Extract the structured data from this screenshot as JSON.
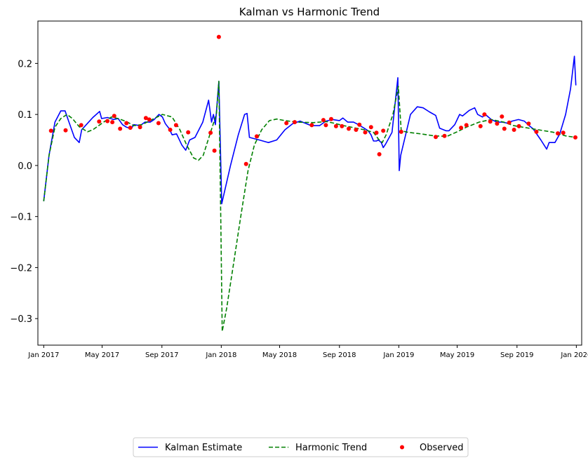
{
  "chart_data": {
    "type": "line",
    "title": "Kalman vs Harmonic Trend",
    "xlabel": "",
    "ylabel": "",
    "x_axis": {
      "type": "date",
      "range": [
        "2016-12-20",
        "2020-01-12"
      ],
      "ticks": [
        "2017-01-01",
        "2017-05-01",
        "2017-09-01",
        "2018-01-01",
        "2018-05-01",
        "2018-09-01",
        "2019-01-01",
        "2019-05-01",
        "2019-09-01",
        "2020-01-01"
      ],
      "tick_labels": [
        "Jan 2017",
        "May 2017",
        "Sep 2017",
        "Jan 2018",
        "May 2018",
        "Sep 2018",
        "Jan 2019",
        "May 2019",
        "Sep 2019",
        "Jan 2020"
      ]
    },
    "y_axis": {
      "range": [
        -0.352,
        0.283
      ],
      "ticks": [
        -0.3,
        -0.2,
        -0.1,
        0.0,
        0.1,
        0.2
      ],
      "tick_labels": [
        "−0.3",
        "−0.2",
        "−0.1",
        "0.0",
        "0.1",
        "0.2"
      ]
    },
    "grid": false,
    "legend": {
      "placement": "bottom-center",
      "columns": 3
    },
    "series": [
      {
        "name": "Kalman Estimate",
        "style": "solid",
        "color": "#0000ff",
        "points": [
          [
            "2017-01-01",
            -0.07
          ],
          [
            "2017-01-12",
            0.02
          ],
          [
            "2017-01-24",
            0.085
          ],
          [
            "2017-02-05",
            0.107
          ],
          [
            "2017-02-14",
            0.107
          ],
          [
            "2017-02-20",
            0.09
          ],
          [
            "2017-03-05",
            0.055
          ],
          [
            "2017-03-15",
            0.045
          ],
          [
            "2017-03-20",
            0.07
          ],
          [
            "2017-04-12",
            0.094
          ],
          [
            "2017-04-26",
            0.106
          ],
          [
            "2017-04-30",
            0.092
          ],
          [
            "2017-05-12",
            0.094
          ],
          [
            "2017-05-25",
            0.09
          ],
          [
            "2017-06-03",
            0.092
          ],
          [
            "2017-06-12",
            0.08
          ],
          [
            "2017-06-20",
            0.075
          ],
          [
            "2017-06-30",
            0.072
          ],
          [
            "2017-07-05",
            0.08
          ],
          [
            "2017-07-18",
            0.078
          ],
          [
            "2017-07-28",
            0.085
          ],
          [
            "2017-08-08",
            0.085
          ],
          [
            "2017-08-16",
            0.09
          ],
          [
            "2017-08-26",
            0.1
          ],
          [
            "2017-09-02",
            0.095
          ],
          [
            "2017-09-08",
            0.082
          ],
          [
            "2017-09-16",
            0.072
          ],
          [
            "2017-09-22",
            0.06
          ],
          [
            "2017-10-01",
            0.062
          ],
          [
            "2017-10-12",
            0.04
          ],
          [
            "2017-10-20",
            0.03
          ],
          [
            "2017-10-28",
            0.05
          ],
          [
            "2017-11-08",
            0.055
          ],
          [
            "2017-11-24",
            0.085
          ],
          [
            "2017-12-06",
            0.128
          ],
          [
            "2017-12-12",
            0.085
          ],
          [
            "2017-12-16",
            0.1
          ],
          [
            "2017-12-20",
            0.08
          ],
          [
            "2017-12-27",
            0.165
          ],
          [
            "2018-01-02",
            -0.075
          ],
          [
            "2018-01-20",
            0.0
          ],
          [
            "2018-02-05",
            0.06
          ],
          [
            "2018-02-18",
            0.1
          ],
          [
            "2018-02-23",
            0.102
          ],
          [
            "2018-02-28",
            0.055
          ],
          [
            "2018-03-20",
            0.05
          ],
          [
            "2018-04-08",
            0.045
          ],
          [
            "2018-04-25",
            0.05
          ],
          [
            "2018-05-12",
            0.07
          ],
          [
            "2018-05-28",
            0.082
          ],
          [
            "2018-06-12",
            0.087
          ],
          [
            "2018-07-05",
            0.078
          ],
          [
            "2018-07-22",
            0.078
          ],
          [
            "2018-08-04",
            0.087
          ],
          [
            "2018-08-18",
            0.09
          ],
          [
            "2018-09-01",
            0.088
          ],
          [
            "2018-09-08",
            0.093
          ],
          [
            "2018-09-18",
            0.085
          ],
          [
            "2018-09-30",
            0.085
          ],
          [
            "2018-10-10",
            0.08
          ],
          [
            "2018-10-22",
            0.073
          ],
          [
            "2018-10-30",
            0.068
          ],
          [
            "2018-11-05",
            0.06
          ],
          [
            "2018-11-10",
            0.048
          ],
          [
            "2018-11-16",
            0.048
          ],
          [
            "2018-11-20",
            0.05
          ],
          [
            "2018-11-26",
            0.045
          ],
          [
            "2018-11-30",
            0.035
          ],
          [
            "2018-12-05",
            0.042
          ],
          [
            "2018-12-18",
            0.065
          ],
          [
            "2018-12-30",
            0.172
          ],
          [
            "2019-01-02",
            -0.01
          ],
          [
            "2019-01-05",
            0.02
          ],
          [
            "2019-01-15",
            0.06
          ],
          [
            "2019-01-25",
            0.1
          ],
          [
            "2019-02-08",
            0.115
          ],
          [
            "2019-02-20",
            0.113
          ],
          [
            "2019-03-05",
            0.105
          ],
          [
            "2019-03-18",
            0.098
          ],
          [
            "2019-03-26",
            0.073
          ],
          [
            "2019-04-08",
            0.068
          ],
          [
            "2019-04-14",
            0.068
          ],
          [
            "2019-04-26",
            0.08
          ],
          [
            "2019-05-06",
            0.1
          ],
          [
            "2019-05-12",
            0.097
          ],
          [
            "2019-05-26",
            0.108
          ],
          [
            "2019-06-06",
            0.113
          ],
          [
            "2019-06-12",
            0.1
          ],
          [
            "2019-06-22",
            0.095
          ],
          [
            "2019-06-28",
            0.1
          ],
          [
            "2019-07-10",
            0.09
          ],
          [
            "2019-07-22",
            0.085
          ],
          [
            "2019-08-02",
            0.085
          ],
          [
            "2019-08-12",
            0.083
          ],
          [
            "2019-08-22",
            0.087
          ],
          [
            "2019-09-04",
            0.09
          ],
          [
            "2019-09-16",
            0.087
          ],
          [
            "2019-09-26",
            0.078
          ],
          [
            "2019-10-04",
            0.072
          ],
          [
            "2019-10-20",
            0.05
          ],
          [
            "2019-11-01",
            0.032
          ],
          [
            "2019-11-06",
            0.045
          ],
          [
            "2019-11-18",
            0.045
          ],
          [
            "2019-11-28",
            0.062
          ],
          [
            "2019-12-10",
            0.1
          ],
          [
            "2019-12-20",
            0.15
          ],
          [
            "2019-12-28",
            0.214
          ],
          [
            "2019-12-31",
            0.157
          ]
        ]
      },
      {
        "name": "Harmonic Trend",
        "style": "dashed",
        "color": "#008000",
        "points": [
          [
            "2017-01-01",
            -0.07
          ],
          [
            "2017-01-12",
            0.02
          ],
          [
            "2017-01-24",
            0.075
          ],
          [
            "2017-02-05",
            0.092
          ],
          [
            "2017-02-18",
            0.1
          ],
          [
            "2017-03-01",
            0.092
          ],
          [
            "2017-03-15",
            0.076
          ],
          [
            "2017-04-01",
            0.066
          ],
          [
            "2017-04-12",
            0.07
          ],
          [
            "2017-05-04",
            0.085
          ],
          [
            "2017-05-20",
            0.095
          ],
          [
            "2017-06-03",
            0.092
          ],
          [
            "2017-06-20",
            0.086
          ],
          [
            "2017-07-05",
            0.078
          ],
          [
            "2017-07-22",
            0.08
          ],
          [
            "2017-08-12",
            0.09
          ],
          [
            "2017-09-02",
            0.1
          ],
          [
            "2017-09-22",
            0.095
          ],
          [
            "2017-10-08",
            0.07
          ],
          [
            "2017-10-22",
            0.04
          ],
          [
            "2017-11-05",
            0.015
          ],
          [
            "2017-11-15",
            0.01
          ],
          [
            "2017-11-25",
            0.02
          ],
          [
            "2017-12-05",
            0.05
          ],
          [
            "2017-12-15",
            0.08
          ],
          [
            "2017-12-22",
            0.1
          ],
          [
            "2017-12-27",
            0.165
          ],
          [
            "2017-12-31",
            -0.1
          ],
          [
            "2018-01-03",
            -0.325
          ],
          [
            "2018-01-12",
            -0.28
          ],
          [
            "2018-01-25",
            -0.2
          ],
          [
            "2018-02-10",
            -0.1
          ],
          [
            "2018-02-25",
            -0.01
          ],
          [
            "2018-03-10",
            0.04
          ],
          [
            "2018-03-25",
            0.07
          ],
          [
            "2018-04-10",
            0.088
          ],
          [
            "2018-04-25",
            0.091
          ],
          [
            "2018-05-12",
            0.088
          ],
          [
            "2018-06-05",
            0.085
          ],
          [
            "2018-07-10",
            0.084
          ],
          [
            "2018-08-05",
            0.086
          ],
          [
            "2018-08-20",
            0.083
          ],
          [
            "2018-09-10",
            0.078
          ],
          [
            "2018-10-01",
            0.074
          ],
          [
            "2018-10-22",
            0.07
          ],
          [
            "2018-11-10",
            0.065
          ],
          [
            "2018-11-20",
            0.052
          ],
          [
            "2018-11-28",
            0.045
          ],
          [
            "2018-12-06",
            0.06
          ],
          [
            "2018-12-20",
            0.1
          ],
          [
            "2018-12-31",
            0.155
          ],
          [
            "2019-01-06",
            0.068
          ],
          [
            "2019-01-20",
            0.065
          ],
          [
            "2019-02-15",
            0.062
          ],
          [
            "2019-03-15",
            0.058
          ],
          [
            "2019-04-10",
            0.057
          ],
          [
            "2019-05-01",
            0.066
          ],
          [
            "2019-05-20",
            0.075
          ],
          [
            "2019-06-15",
            0.085
          ],
          [
            "2019-07-10",
            0.09
          ],
          [
            "2019-08-05",
            0.085
          ],
          [
            "2019-08-25",
            0.078
          ],
          [
            "2019-09-20",
            0.074
          ],
          [
            "2019-10-15",
            0.07
          ],
          [
            "2019-11-15",
            0.065
          ],
          [
            "2019-12-10",
            0.058
          ],
          [
            "2019-12-31",
            0.055
          ]
        ]
      },
      {
        "name": "Observed",
        "style": "markers",
        "color": "#ff0000",
        "points": [
          [
            "2017-01-16",
            0.068
          ],
          [
            "2017-02-15",
            0.069
          ],
          [
            "2017-03-19",
            0.079
          ],
          [
            "2017-04-25",
            0.086
          ],
          [
            "2017-05-12",
            0.087
          ],
          [
            "2017-05-22",
            0.085
          ],
          [
            "2017-05-26",
            0.097
          ],
          [
            "2017-06-07",
            0.072
          ],
          [
            "2017-06-20",
            0.083
          ],
          [
            "2017-06-28",
            0.074
          ],
          [
            "2017-07-18",
            0.075
          ],
          [
            "2017-07-30",
            0.093
          ],
          [
            "2017-08-06",
            0.09
          ],
          [
            "2017-08-25",
            0.083
          ],
          [
            "2017-09-18",
            0.07
          ],
          [
            "2017-09-30",
            0.079
          ],
          [
            "2017-10-25",
            0.065
          ],
          [
            "2017-12-10",
            0.064
          ],
          [
            "2017-12-18",
            0.029
          ],
          [
            "2017-12-27",
            0.252
          ],
          [
            "2018-02-21",
            0.003
          ],
          [
            "2018-03-15",
            0.057
          ],
          [
            "2018-05-15",
            0.083
          ],
          [
            "2018-06-01",
            0.085
          ],
          [
            "2018-07-06",
            0.079
          ],
          [
            "2018-07-30",
            0.089
          ],
          [
            "2018-08-04",
            0.079
          ],
          [
            "2018-08-15",
            0.091
          ],
          [
            "2018-08-25",
            0.077
          ],
          [
            "2018-09-06",
            0.077
          ],
          [
            "2018-09-20",
            0.072
          ],
          [
            "2018-10-05",
            0.07
          ],
          [
            "2018-10-12",
            0.08
          ],
          [
            "2018-10-24",
            0.065
          ],
          [
            "2018-11-05",
            0.075
          ],
          [
            "2018-11-16",
            0.064
          ],
          [
            "2018-11-22",
            0.022
          ],
          [
            "2018-11-30",
            0.068
          ],
          [
            "2019-01-06",
            0.066
          ],
          [
            "2019-03-18",
            0.056
          ],
          [
            "2019-04-05",
            0.058
          ],
          [
            "2019-05-09",
            0.074
          ],
          [
            "2019-05-20",
            0.079
          ],
          [
            "2019-06-18",
            0.077
          ],
          [
            "2019-06-26",
            0.1
          ],
          [
            "2019-07-08",
            0.086
          ],
          [
            "2019-07-22",
            0.082
          ],
          [
            "2019-08-01",
            0.096
          ],
          [
            "2019-08-06",
            0.072
          ],
          [
            "2019-08-16",
            0.084
          ],
          [
            "2019-08-26",
            0.07
          ],
          [
            "2019-09-05",
            0.077
          ],
          [
            "2019-09-25",
            0.082
          ],
          [
            "2019-10-11",
            0.066
          ],
          [
            "2019-11-24",
            0.063
          ],
          [
            "2019-12-05",
            0.064
          ],
          [
            "2019-12-30",
            0.055
          ]
        ]
      }
    ]
  }
}
